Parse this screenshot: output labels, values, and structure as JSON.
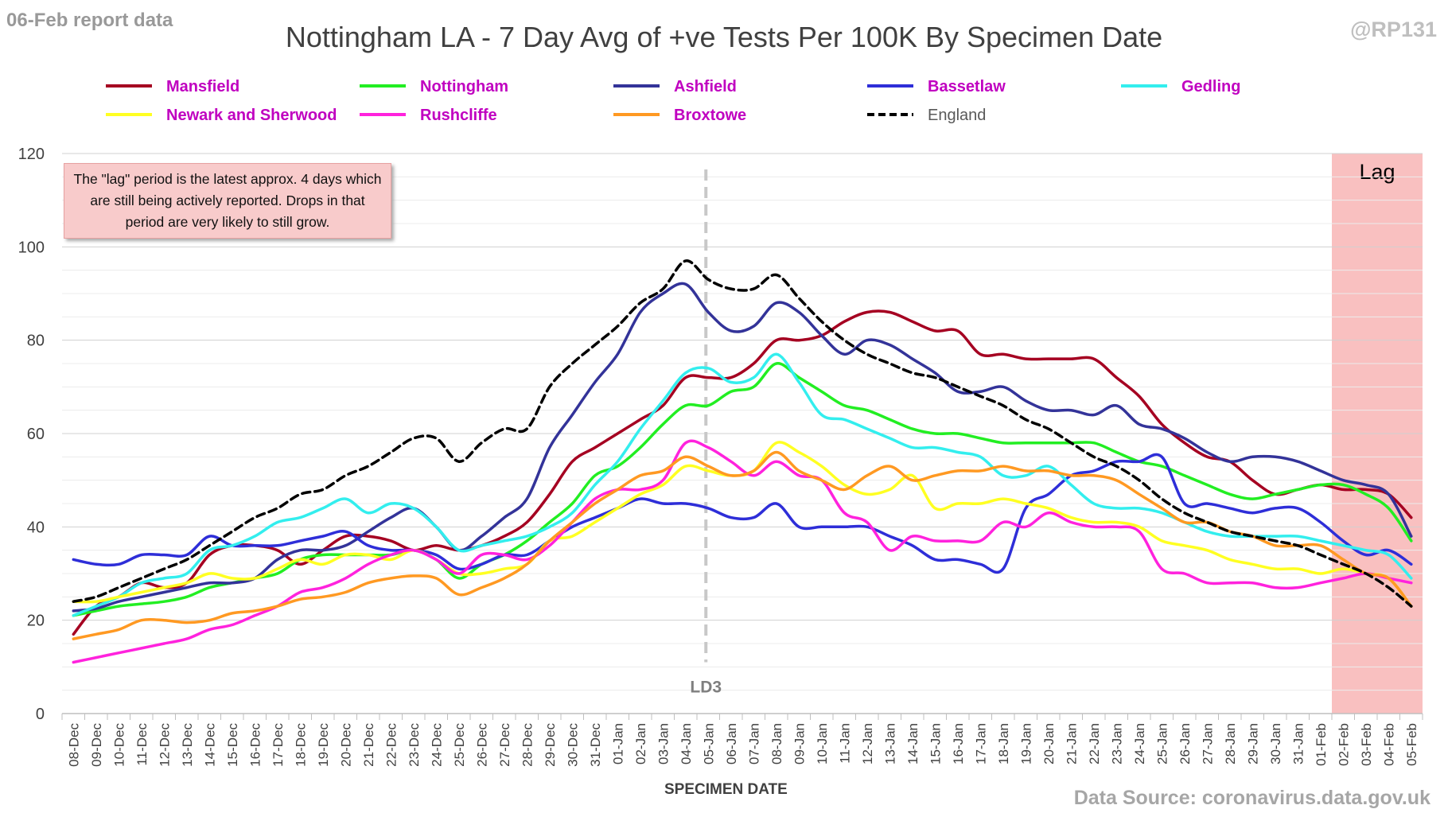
{
  "report_date": "06-Feb report data",
  "handle": "@RP131",
  "source": "Data Source: coronavirus.data.gov.uk",
  "colors": {
    "legend_text": "#c000c0",
    "lag_fill": "#f9c0c0",
    "grid": "#d9d9d9"
  },
  "chart_data": {
    "type": "line",
    "title": "Nottingham LA - 7 Day Avg of +ve Tests Per 100K By Specimen Date",
    "xlabel": "SPECIMEN DATE",
    "ylabel": "",
    "ylim": [
      0,
      120
    ],
    "yticks": [
      0,
      20,
      40,
      60,
      80,
      100,
      120
    ],
    "grid": true,
    "legend_position": "top",
    "categories": [
      "08-Dec",
      "09-Dec",
      "10-Dec",
      "11-Dec",
      "12-Dec",
      "13-Dec",
      "14-Dec",
      "15-Dec",
      "16-Dec",
      "17-Dec",
      "18-Dec",
      "19-Dec",
      "20-Dec",
      "21-Dec",
      "22-Dec",
      "23-Dec",
      "24-Dec",
      "25-Dec",
      "26-Dec",
      "27-Dec",
      "28-Dec",
      "29-Dec",
      "30-Dec",
      "31-Dec",
      "01-Jan",
      "02-Jan",
      "03-Jan",
      "04-Jan",
      "05-Jan",
      "06-Jan",
      "07-Jan",
      "08-Jan",
      "09-Jan",
      "10-Jan",
      "11-Jan",
      "12-Jan",
      "13-Jan",
      "14-Jan",
      "15-Jan",
      "16-Jan",
      "17-Jan",
      "18-Jan",
      "19-Jan",
      "20-Jan",
      "21-Jan",
      "22-Jan",
      "23-Jan",
      "24-Jan",
      "25-Jan",
      "26-Jan",
      "27-Jan",
      "28-Jan",
      "29-Jan",
      "30-Jan",
      "31-Jan",
      "01-Feb",
      "02-Feb",
      "03-Feb",
      "04-Feb",
      "05-Feb"
    ],
    "series": [
      {
        "name": "Mansfield",
        "color": "#a50021",
        "dash": false,
        "values": [
          17,
          23,
          25,
          28,
          27,
          28,
          34,
          36,
          36,
          35,
          32,
          35,
          38,
          38,
          37,
          35,
          36,
          35,
          36,
          38,
          41,
          47,
          54,
          57,
          60,
          63,
          66,
          72,
          72,
          72,
          75,
          80,
          80,
          81,
          84,
          86,
          86,
          84,
          82,
          82,
          77,
          77,
          76,
          76,
          76,
          76,
          72,
          68,
          62,
          58,
          55,
          54,
          50,
          47,
          48,
          49,
          48,
          48,
          47,
          42
        ]
      },
      {
        "name": "Nottingham",
        "color": "#22ee22",
        "dash": false,
        "values": [
          21,
          22,
          23,
          23.5,
          24,
          25,
          27,
          28,
          29,
          30,
          33,
          34,
          34,
          34,
          34,
          35,
          33,
          29,
          32,
          34,
          37,
          41,
          45,
          51,
          53,
          57,
          62,
          66,
          66,
          69,
          70,
          75,
          72,
          69,
          66,
          65,
          63,
          61,
          60,
          60,
          59,
          58,
          58,
          58,
          58,
          58,
          56,
          54,
          53,
          51,
          49,
          47,
          46,
          47,
          48,
          49,
          49,
          47,
          44,
          37
        ]
      },
      {
        "name": "Ashfield",
        "color": "#333399",
        "dash": false,
        "values": [
          22,
          22.5,
          24,
          25,
          26,
          27,
          28,
          28,
          29,
          33,
          35,
          35,
          36,
          39,
          42,
          44,
          40,
          35,
          38,
          42,
          46,
          57,
          64,
          71,
          77,
          86,
          90,
          92,
          86,
          82,
          83,
          88,
          86,
          81,
          77,
          80,
          79,
          76,
          73,
          69,
          69,
          70,
          67,
          65,
          65,
          64,
          66,
          62,
          61,
          59,
          56,
          54,
          55,
          55,
          54,
          52,
          50,
          49,
          47,
          38
        ]
      },
      {
        "name": "Bassetlaw",
        "color": "#2e2ed8",
        "dash": false,
        "values": [
          33,
          32,
          32,
          34,
          34,
          34,
          38,
          36,
          36,
          36,
          37,
          38,
          39,
          36,
          35,
          35,
          34,
          31,
          32,
          34,
          34,
          37,
          40,
          42,
          44,
          46,
          45,
          45,
          44,
          42,
          42,
          45,
          40,
          40,
          40,
          40,
          38,
          36,
          33,
          33,
          32,
          31,
          44,
          47,
          51,
          52,
          54,
          54,
          55,
          45,
          45,
          44,
          43,
          44,
          44,
          41,
          37,
          34,
          35,
          32
        ]
      },
      {
        "name": "Gedling",
        "color": "#33eeee",
        "dash": false,
        "values": [
          21,
          23,
          25,
          28,
          29,
          30,
          35,
          36,
          38,
          41,
          42,
          44,
          46,
          43,
          45,
          44,
          40,
          35,
          36,
          37,
          38,
          40,
          43,
          49,
          54,
          61,
          67,
          73,
          74,
          71,
          72,
          77,
          71,
          64,
          63,
          61,
          59,
          57,
          57,
          56,
          55,
          51,
          51,
          53,
          49,
          45,
          44,
          44,
          43,
          41,
          39,
          38,
          38,
          38,
          38,
          37,
          36,
          35,
          34,
          29
        ]
      },
      {
        "name": "Newark and Sherwood",
        "color": "#ffff22",
        "dash": false,
        "values": [
          24,
          24,
          25,
          26,
          27,
          28,
          30,
          29,
          29,
          31,
          33,
          32,
          34,
          34,
          33,
          35,
          33,
          30,
          30,
          31,
          32,
          37,
          38,
          41,
          44,
          47,
          49,
          53,
          52,
          51,
          52,
          58,
          56,
          53,
          49,
          47,
          48,
          51,
          44,
          45,
          45,
          46,
          45,
          44,
          42,
          41,
          41,
          40,
          37,
          36,
          35,
          33,
          32,
          31,
          31,
          30,
          31,
          30,
          29,
          23
        ]
      },
      {
        "name": "Rushcliffe",
        "color": "#ff22dd",
        "dash": false,
        "values": [
          11,
          12,
          13,
          14,
          15,
          16,
          18,
          19,
          21,
          23,
          26,
          27,
          29,
          32,
          34,
          35,
          33,
          30,
          34,
          34,
          33,
          36,
          41,
          46,
          48,
          48,
          50,
          58,
          57,
          54,
          51,
          54,
          51,
          50,
          43,
          41,
          35,
          38,
          37,
          37,
          37,
          41,
          40,
          43,
          41,
          40,
          40,
          39,
          31,
          30,
          28,
          28,
          28,
          27,
          27,
          28,
          29,
          30,
          29,
          28
        ]
      },
      {
        "name": "Broxtowe",
        "color": "#ff9922",
        "dash": false,
        "values": [
          16,
          17,
          18,
          20,
          20,
          19.5,
          20,
          21.5,
          22,
          23,
          24.5,
          25,
          26,
          28,
          29,
          29.5,
          29,
          25.5,
          27,
          29,
          32,
          37,
          41,
          45,
          48,
          51,
          52,
          55,
          53,
          51,
          52,
          56,
          52,
          50,
          48,
          51,
          53,
          50,
          51,
          52,
          52,
          53,
          52,
          52,
          51,
          51,
          50,
          47,
          44,
          41,
          41,
          39,
          38,
          36,
          36,
          36,
          33,
          30,
          29,
          23
        ]
      },
      {
        "name": "England",
        "color": "#000000",
        "dash": true,
        "values": [
          24,
          25,
          27,
          29,
          31,
          33,
          36,
          39,
          42,
          44,
          47,
          48,
          51,
          53,
          56,
          59,
          59,
          54,
          58,
          61,
          61,
          70,
          75,
          79,
          83,
          88,
          91,
          97,
          93,
          91,
          91,
          94,
          89,
          84,
          80,
          77,
          75,
          73,
          72,
          70,
          68,
          66,
          63,
          61,
          58,
          55,
          53,
          50,
          46,
          43,
          41,
          39,
          38,
          37,
          36,
          34,
          32,
          30,
          27,
          23
        ]
      }
    ],
    "annotations": {
      "ld3_label": "LD3",
      "ld3_category": "05-Jan",
      "lag_label": "Lag",
      "lag_start_category": "02-Feb",
      "lag_note": "The \"lag\" period is the latest approx. 4 days which are still being actively reported.  Drops in that period are very likely to still grow."
    }
  }
}
